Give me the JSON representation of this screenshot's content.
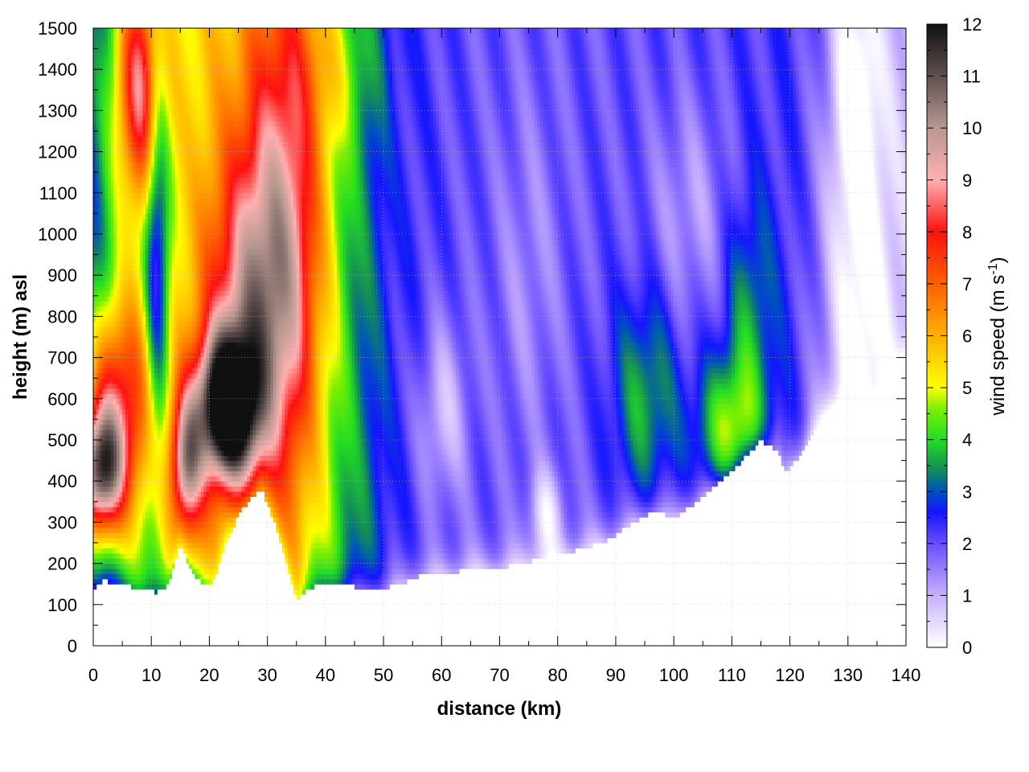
{
  "chart_data": {
    "type": "heatmap",
    "title": "",
    "xlabel": "distance (km)",
    "ylabel": "height (m) asl",
    "colorbar_label": "wind speed (m s",
    "colorbar_label_sup": "-1",
    "colorbar_label_tail": ")",
    "xlim": [
      0,
      140
    ],
    "ylim": [
      0,
      1500
    ],
    "x_ticks": [
      "0",
      "10",
      "20",
      "30",
      "40",
      "50",
      "60",
      "70",
      "80",
      "90",
      "100",
      "110",
      "120",
      "130",
      "140"
    ],
    "y_ticks": [
      "0",
      "100",
      "200",
      "300",
      "400",
      "500",
      "600",
      "700",
      "800",
      "900",
      "1000",
      "1100",
      "1200",
      "1300",
      "1400",
      "1500"
    ],
    "colorbar_range": [
      0,
      12
    ],
    "colorbar_ticks": [
      "0",
      "1",
      "2",
      "3",
      "4",
      "5",
      "6",
      "7",
      "8",
      "9",
      "10",
      "11",
      "12"
    ],
    "grid": true,
    "colormap_stops": [
      [
        0,
        "#ffffff"
      ],
      [
        1,
        "#c8b0ff"
      ],
      [
        2,
        "#6a4dff"
      ],
      [
        2.6,
        "#1515ff"
      ],
      [
        3,
        "#0050c0"
      ],
      [
        3.4,
        "#138a5a"
      ],
      [
        4,
        "#22dd22"
      ],
      [
        4.6,
        "#7cf000"
      ],
      [
        5,
        "#ffff00"
      ],
      [
        6,
        "#ffb000"
      ],
      [
        7,
        "#ff6000"
      ],
      [
        8,
        "#ff1010"
      ],
      [
        9,
        "#ffb0b0"
      ],
      [
        10,
        "#b89890"
      ],
      [
        11,
        "#605050"
      ],
      [
        12,
        "#101010"
      ]
    ],
    "terrain_height_m": [
      [
        0,
        140
      ],
      [
        2,
        160
      ],
      [
        4,
        150
      ],
      [
        8,
        140
      ],
      [
        11,
        130
      ],
      [
        13,
        150
      ],
      [
        15,
        250
      ],
      [
        17,
        180
      ],
      [
        19,
        150
      ],
      [
        21,
        160
      ],
      [
        23,
        260
      ],
      [
        26,
        340
      ],
      [
        29,
        380
      ],
      [
        31,
        310
      ],
      [
        33,
        220
      ],
      [
        35,
        110
      ],
      [
        37,
        140
      ],
      [
        40,
        150
      ],
      [
        44,
        150
      ],
      [
        46,
        140
      ],
      [
        50,
        140
      ],
      [
        53,
        150
      ],
      [
        56,
        170
      ],
      [
        60,
        175
      ],
      [
        65,
        185
      ],
      [
        70,
        190
      ],
      [
        75,
        205
      ],
      [
        80,
        220
      ],
      [
        85,
        240
      ],
      [
        89,
        260
      ],
      [
        93,
        300
      ],
      [
        97,
        330
      ],
      [
        100,
        310
      ],
      [
        103,
        340
      ],
      [
        107,
        390
      ],
      [
        111,
        440
      ],
      [
        115,
        500
      ],
      [
        118,
        470
      ],
      [
        119,
        420
      ],
      [
        121,
        450
      ],
      [
        124,
        520
      ],
      [
        127,
        580
      ],
      [
        130,
        590
      ],
      [
        132,
        570
      ],
      [
        134,
        540
      ],
      [
        137,
        610
      ],
      [
        140,
        710
      ]
    ],
    "wind_speed_field": [
      {
        "x": 1,
        "y": 420,
        "sx": 3.0,
        "sy": 110,
        "v": 6.5
      },
      {
        "x": 4,
        "y": 600,
        "sx": 4.0,
        "sy": 180,
        "v": 4.0
      },
      {
        "x": 8,
        "y": 1350,
        "sx": 3.0,
        "sy": 200,
        "v": 4.2
      },
      {
        "x": 11,
        "y": 1000,
        "sx": 1.5,
        "sy": 350,
        "v": -3.0
      },
      {
        "x": 16,
        "y": 440,
        "sx": 2.0,
        "sy": 130,
        "v": 4.5
      },
      {
        "x": 23,
        "y": 580,
        "sx": 3.5,
        "sy": 120,
        "v": 7.5
      },
      {
        "x": 28,
        "y": 780,
        "sx": 6.0,
        "sy": 300,
        "v": 4.0
      },
      {
        "x": 33,
        "y": 1150,
        "sx": 5.0,
        "sy": 400,
        "v": 2.5
      },
      {
        "x": 42,
        "y": 1400,
        "sx": 5.0,
        "sy": 120,
        "v": 0.8
      },
      {
        "x": 60,
        "y": 560,
        "sx": 3.0,
        "sy": 160,
        "v": -1.3
      },
      {
        "x": 78,
        "y": 320,
        "sx": 2.0,
        "sy": 80,
        "v": -1.5
      },
      {
        "x": 75,
        "y": 900,
        "sx": 4.0,
        "sy": 300,
        "v": -0.6
      },
      {
        "x": 95,
        "y": 600,
        "sx": 4.0,
        "sy": 180,
        "v": 1.6
      },
      {
        "x": 110,
        "y": 520,
        "sx": 4.0,
        "sy": 120,
        "v": 2.5
      },
      {
        "x": 113,
        "y": 800,
        "sx": 3.0,
        "sy": 200,
        "v": 1.3
      },
      {
        "x": 103,
        "y": 1050,
        "sx": 5.0,
        "sy": 200,
        "v": -0.9
      },
      {
        "x": 132,
        "y": 800,
        "sx": 4.0,
        "sy": 500,
        "v": -1.6
      },
      {
        "x": 131,
        "y": 1350,
        "sx": 2.5,
        "sy": 200,
        "v": -1.2
      }
    ]
  }
}
